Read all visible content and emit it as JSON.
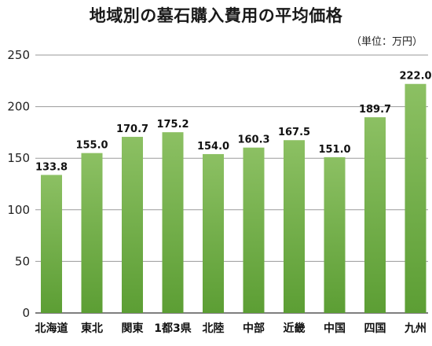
{
  "chart_data": {
    "type": "bar",
    "title": "地域別の墓石購入費用の平均価格",
    "unit_label": "（単位：万円）",
    "categories": [
      "北海道",
      "東北",
      "関東",
      "1都3県",
      "北陸",
      "中部",
      "近畿",
      "中国",
      "四国",
      "九州"
    ],
    "values": [
      133.8,
      155.0,
      170.7,
      175.2,
      154.0,
      160.3,
      167.5,
      151.0,
      189.7,
      222.0
    ],
    "value_labels": [
      "133.8",
      "155.0",
      "170.7",
      "175.2",
      "154.0",
      "160.3",
      "167.5",
      "151.0",
      "189.7",
      "222.0"
    ],
    "yticks": [
      "0",
      "50",
      "100",
      "150",
      "200",
      "250"
    ],
    "ylim": [
      0,
      250
    ],
    "grid": true,
    "legend": "none",
    "colors": {
      "bar_top": "#8cc063",
      "bar_bottom": "#5c9e34",
      "grid": "#9a9a9a",
      "axis": "#333333"
    }
  }
}
